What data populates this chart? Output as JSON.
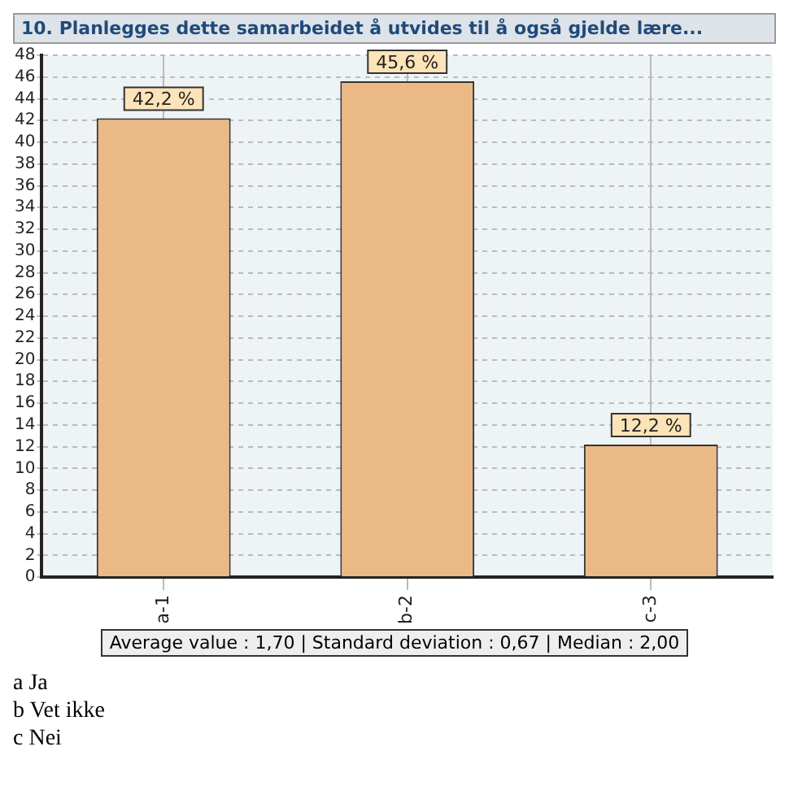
{
  "chart_data": {
    "type": "bar",
    "title": "10. Planlegges dette samarbeidet å utvides til å også gjelde lære...",
    "categories": [
      "a-1",
      "b-2",
      "c-3"
    ],
    "values": [
      42.2,
      45.6,
      12.2
    ],
    "value_labels": [
      "42,2 %",
      "45,6 %",
      "12,2 %"
    ],
    "color": "#ebb985",
    "ylim": [
      0,
      48
    ],
    "yticks": [
      0,
      2,
      4,
      6,
      8,
      10,
      12,
      14,
      16,
      18,
      20,
      22,
      24,
      26,
      28,
      30,
      32,
      34,
      36,
      38,
      40,
      42,
      44,
      46,
      48
    ],
    "grid": true,
    "legend": false,
    "annotations": [
      "Average value : 1,70 | Standard deviation : 0,67 | Median : 2,00",
      "a Ja",
      "b Vet ikke",
      "c Nei"
    ]
  }
}
